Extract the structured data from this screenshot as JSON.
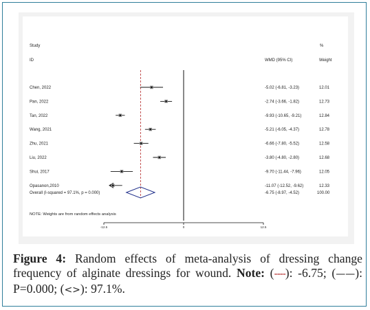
{
  "chart_data": {
    "type": "forest",
    "headers": {
      "study_line1": "Study",
      "study_line2": "ID",
      "effect": "WMD (95% CI)",
      "weight_line1": "%",
      "weight_line2": "Weight"
    },
    "studies": [
      {
        "id": "Chen, 2022",
        "est": -5.02,
        "lo": -6.81,
        "hi": -3.23,
        "ci_text": "-5.02 (-6.81, -3.23)",
        "weight": "12.01"
      },
      {
        "id": "Pan, 2022",
        "est": -2.74,
        "lo": -3.66,
        "hi": -1.82,
        "ci_text": "-2.74 (-3.66, -1.82)",
        "weight": "12.73"
      },
      {
        "id": "Tan, 2022",
        "est": -9.93,
        "lo": -10.65,
        "hi": -9.21,
        "ci_text": "-9.93 (-10.65, -9.21)",
        "weight": "12.84"
      },
      {
        "id": "Wang, 2021",
        "est": -5.21,
        "lo": -6.05,
        "hi": -4.37,
        "ci_text": "-5.21 (-6.05, -4.37)",
        "weight": "12.78"
      },
      {
        "id": "Zhu, 2021",
        "est": -6.66,
        "lo": -7.8,
        "hi": -5.52,
        "ci_text": "-6.66 (-7.80, -5.52)",
        "weight": "12.58"
      },
      {
        "id": "Liu, 2022",
        "est": -3.8,
        "lo": -4.8,
        "hi": -2.8,
        "ci_text": "-3.80 (-4.80, -2.80)",
        "weight": "12.68"
      },
      {
        "id": "Shui, 2017",
        "est": -9.7,
        "lo": -11.44,
        "hi": -7.96,
        "ci_text": "-9.70 (-11.44, -7.96)",
        "weight": "12.05"
      },
      {
        "id": "Opasanon,2010",
        "est": -11.07,
        "lo": -12.52,
        "hi": -9.62,
        "ci_text": "-11.07 (-12.52, -9.62)",
        "weight": "12.33",
        "arrow_left": true
      }
    ],
    "overall": {
      "label": "Overall  (I-squared = 97.1%, p = 0.000)",
      "est": -6.75,
      "lo": -8.97,
      "hi": -4.52,
      "ci_text": "-6.75 (-8.97, -4.52)",
      "weight": "100.00"
    },
    "note": "NOTE: Weights are from random effects analysis",
    "x_axis": {
      "ticks": [
        -12.5,
        0,
        12.5
      ],
      "tick_labels": [
        "-12.5",
        "0",
        "12.5"
      ],
      "range": [
        -12.5,
        12.5
      ]
    },
    "null_line": 0,
    "reference_line": -6.75
  },
  "caption": {
    "label": "Figure 4:",
    "text": " Random effects of meta-analysis of dressing change frequency of alginate dressings for wound. ",
    "note_label": "Note:",
    "p1_open": " (",
    "p1_symbol": "----",
    "p1_text": "): -6.75; (",
    "p2_symbol": "——",
    "p2_text": "): P=0.000; (",
    "p3_symbol": "<>",
    "p3_text": "): 97.1%."
  },
  "colors": {
    "dashed_line": "#b22222",
    "diamond": "#1f2f8a",
    "frame": "#2e7d9a",
    "panel": "#f2f2f2"
  }
}
